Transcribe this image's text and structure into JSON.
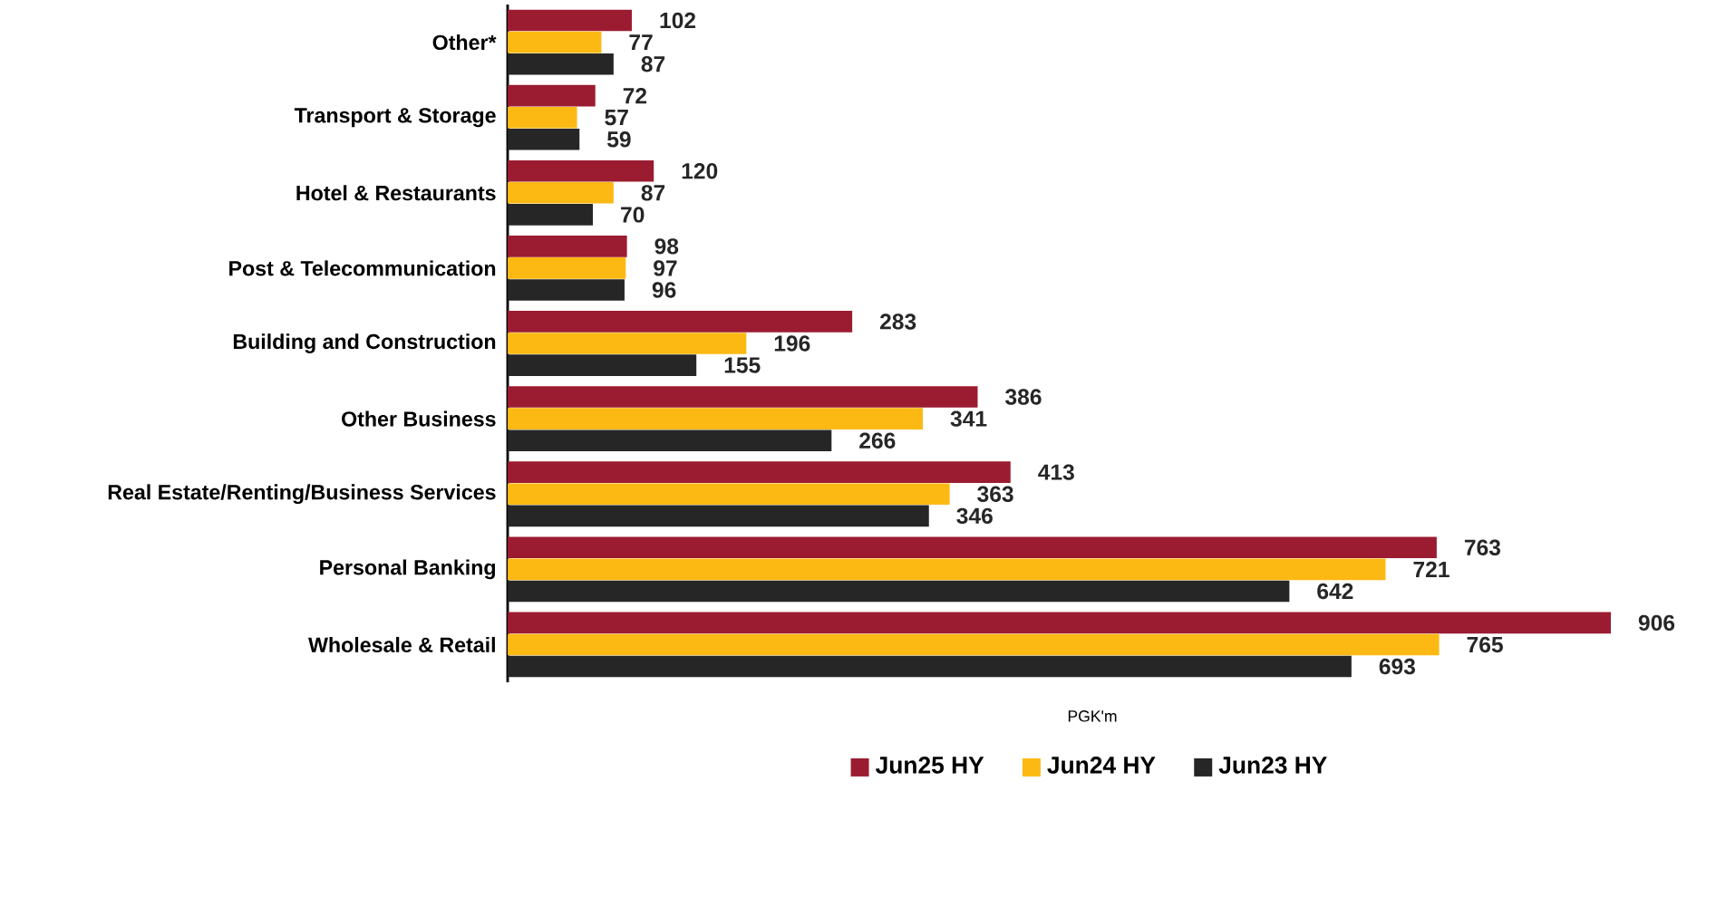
{
  "chart_data": {
    "type": "bar",
    "orientation": "horizontal",
    "xlabel": "PGK'm",
    "categories": [
      "Other*",
      "Transport & Storage",
      "Hotel & Restaurants",
      "Post & Telecommunication",
      "Building and Construction",
      "Other Business",
      "Real Estate/Renting/Business Services",
      "Personal Banking",
      "Wholesale & Retail"
    ],
    "series": [
      {
        "name": "Jun25 HY",
        "color": "#9b1c31",
        "values": [
          102,
          72,
          120,
          98,
          283,
          386,
          413,
          763,
          906
        ]
      },
      {
        "name": "Jun24 HY",
        "color": "#fdb913",
        "values": [
          77,
          57,
          87,
          97,
          196,
          341,
          363,
          721,
          765
        ]
      },
      {
        "name": "Jun23 HY",
        "color": "#262626",
        "values": [
          87,
          59,
          70,
          96,
          155,
          266,
          346,
          642,
          693
        ]
      }
    ],
    "data_labels": true,
    "legend": "bottom"
  }
}
